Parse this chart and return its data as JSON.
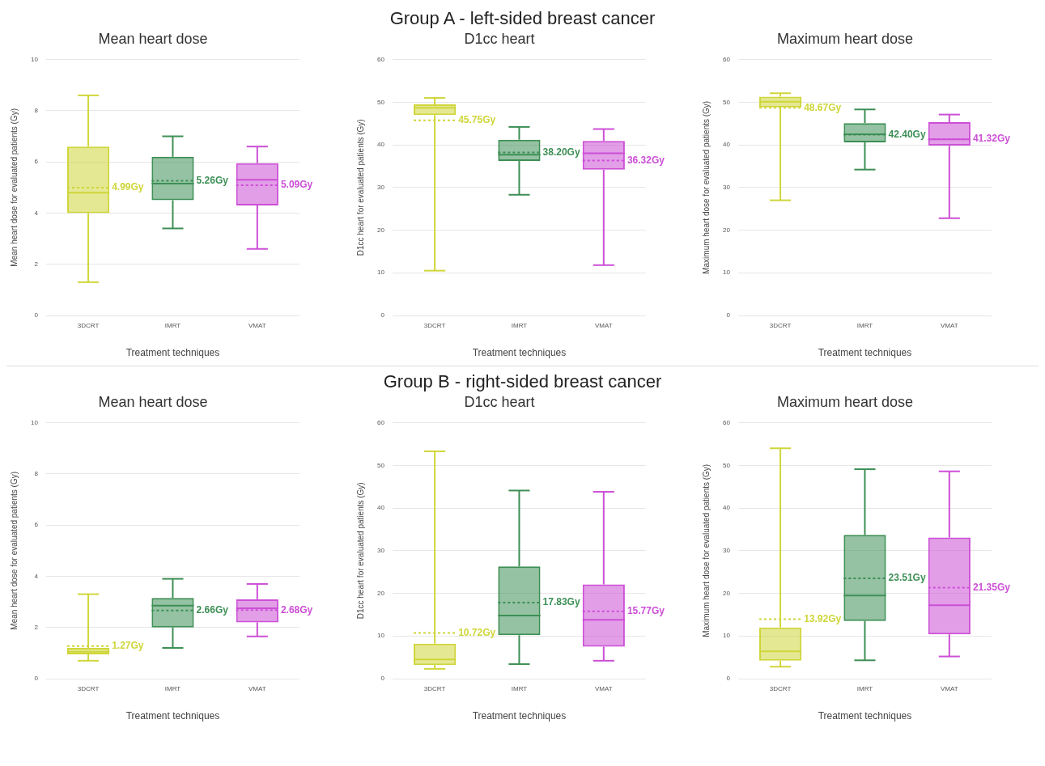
{
  "chart_data": [
    {
      "type": "box",
      "annotations": [
        "Group A - left-sided breast cancer"
      ],
      "title": "Mean heart dose",
      "xlabel": "Treatment techniques",
      "ylabel": "Mean heart dose for evaluated patients (Gy)",
      "categories": [
        "3DCRT",
        "IMRT",
        "VMAT"
      ],
      "colors": [
        "#cfd63a",
        "#3d8f55",
        "#cc4fd6"
      ],
      "ylim": [
        0,
        10
      ],
      "yticks": [
        0,
        2,
        4,
        6,
        8,
        10
      ],
      "grid": "y",
      "boxes": [
        {
          "low": 1.3,
          "q1": 4.0,
          "median": 4.8,
          "q3": 6.6,
          "high": 8.6,
          "mean": 4.99
        },
        {
          "low": 3.4,
          "q1": 4.5,
          "median": 5.15,
          "q3": 6.2,
          "high": 7.0,
          "mean": 5.26
        },
        {
          "low": 2.6,
          "q1": 4.3,
          "median": 5.3,
          "q3": 5.95,
          "high": 6.6,
          "mean": 5.09
        }
      ],
      "value_labels": [
        "4.99Gy",
        "5.26Gy",
        "5.09Gy"
      ]
    },
    {
      "type": "box",
      "title": "D1cc heart",
      "xlabel": "Treatment techniques",
      "ylabel": "D1cc heart for evaluated patients (Gy)",
      "categories": [
        "3DCRT",
        "IMRT",
        "VMAT"
      ],
      "colors": [
        "#cfd63a",
        "#3d8f55",
        "#cc4fd6"
      ],
      "ylim": [
        0,
        60
      ],
      "yticks": [
        0,
        10,
        20,
        30,
        40,
        50,
        60
      ],
      "grid": "y",
      "boxes": [
        {
          "low": 10.5,
          "q1": 47,
          "median": 48.7,
          "q3": 49.5,
          "high": 51,
          "mean": 45.75
        },
        {
          "low": 28.3,
          "q1": 36.2,
          "median": 37.7,
          "q3": 41.2,
          "high": 44.2,
          "mean": 38.2
        },
        {
          "low": 11.8,
          "q1": 34.2,
          "median": 38,
          "q3": 40.9,
          "high": 43.7,
          "mean": 36.32
        }
      ],
      "value_labels": [
        "45.75Gy",
        "38.20Gy",
        "36.32Gy"
      ]
    },
    {
      "type": "box",
      "title": "Maximum heart dose",
      "xlabel": "Treatment techniques",
      "ylabel": "Maximum heart dose for evaluated patients (Gy)",
      "categories": [
        "3DCRT",
        "IMRT",
        "VMAT"
      ],
      "colors": [
        "#cfd63a",
        "#3d8f55",
        "#cc4fd6"
      ],
      "ylim": [
        0,
        60
      ],
      "yticks": [
        0,
        10,
        20,
        30,
        40,
        50,
        60
      ],
      "grid": "y",
      "boxes": [
        {
          "low": 27,
          "q1": 48.8,
          "median": 50.1,
          "q3": 51.3,
          "high": 52.1,
          "mean": 48.67
        },
        {
          "low": 34.2,
          "q1": 40.6,
          "median": 42.5,
          "q3": 45.1,
          "high": 48.3,
          "mean": 42.4
        },
        {
          "low": 22.8,
          "q1": 39.8,
          "median": 41.3,
          "q3": 45.3,
          "high": 47.1,
          "mean": 41.32
        }
      ],
      "value_labels": [
        "48.67Gy",
        "42.40Gy",
        "41.32Gy"
      ]
    },
    {
      "type": "box",
      "annotations": [
        "Group B - right-sided breast cancer"
      ],
      "title": "Mean heart dose",
      "xlabel": "Treatment techniques",
      "ylabel": "Mean heart dose for evaluated patients (Gy)",
      "categories": [
        "3DCRT",
        "IMRT",
        "VMAT"
      ],
      "colors": [
        "#cfd63a",
        "#3d8f55",
        "#cc4fd6"
      ],
      "ylim": [
        0,
        10
      ],
      "yticks": [
        0,
        2,
        4,
        6,
        8,
        10
      ],
      "grid": "y",
      "boxes": [
        {
          "low": 0.7,
          "q1": 0.95,
          "median": 1.05,
          "q3": 1.2,
          "high": 3.3,
          "mean": 1.27
        },
        {
          "low": 1.2,
          "q1": 2.0,
          "median": 2.85,
          "q3": 3.15,
          "high": 3.9,
          "mean": 2.66
        },
        {
          "low": 1.65,
          "q1": 2.2,
          "median": 2.75,
          "q3": 3.1,
          "high": 3.7,
          "mean": 2.68
        }
      ],
      "value_labels": [
        "1.27Gy",
        "2.66Gy",
        "2.68Gy"
      ]
    },
    {
      "type": "box",
      "title": "D1cc heart",
      "xlabel": "Treatment techniques",
      "ylabel": "D1cc heart for evaluated patients (Gy)",
      "categories": [
        "3DCRT",
        "IMRT",
        "VMAT"
      ],
      "colors": [
        "#cfd63a",
        "#3d8f55",
        "#cc4fd6"
      ],
      "ylim": [
        0,
        60
      ],
      "yticks": [
        0,
        10,
        20,
        30,
        40,
        50,
        60
      ],
      "grid": "y",
      "boxes": [
        {
          "low": 2.3,
          "q1": 3.2,
          "median": 4.5,
          "q3": 8.2,
          "high": 53.3,
          "mean": 10.72
        },
        {
          "low": 3.4,
          "q1": 10.2,
          "median": 14.8,
          "q3": 26.3,
          "high": 44.1,
          "mean": 17.83
        },
        {
          "low": 4.2,
          "q1": 7.5,
          "median": 13.8,
          "q3": 22.1,
          "high": 43.8,
          "mean": 15.77
        }
      ],
      "value_labels": [
        "10.72Gy",
        "17.83Gy",
        "15.77Gy"
      ]
    },
    {
      "type": "box",
      "title": "Maximum heart dose",
      "xlabel": "Treatment techniques",
      "ylabel": "Maximum heart dose for evaluated patients (Gy)",
      "categories": [
        "3DCRT",
        "IMRT",
        "VMAT"
      ],
      "colors": [
        "#cfd63a",
        "#3d8f55",
        "#cc4fd6"
      ],
      "ylim": [
        0,
        60
      ],
      "yticks": [
        0,
        10,
        20,
        30,
        40,
        50,
        60
      ],
      "grid": "y",
      "boxes": [
        {
          "low": 2.8,
          "q1": 4.2,
          "median": 6.4,
          "q3": 12,
          "high": 54,
          "mean": 13.92
        },
        {
          "low": 4.3,
          "q1": 13.5,
          "median": 19.5,
          "q3": 33.7,
          "high": 49.1,
          "mean": 23.51
        },
        {
          "low": 5.2,
          "q1": 10.4,
          "median": 17.2,
          "q3": 33.1,
          "high": 48.6,
          "mean": 21.35
        }
      ],
      "value_labels": [
        "13.92Gy",
        "23.51Gy",
        "21.35Gy"
      ]
    }
  ]
}
